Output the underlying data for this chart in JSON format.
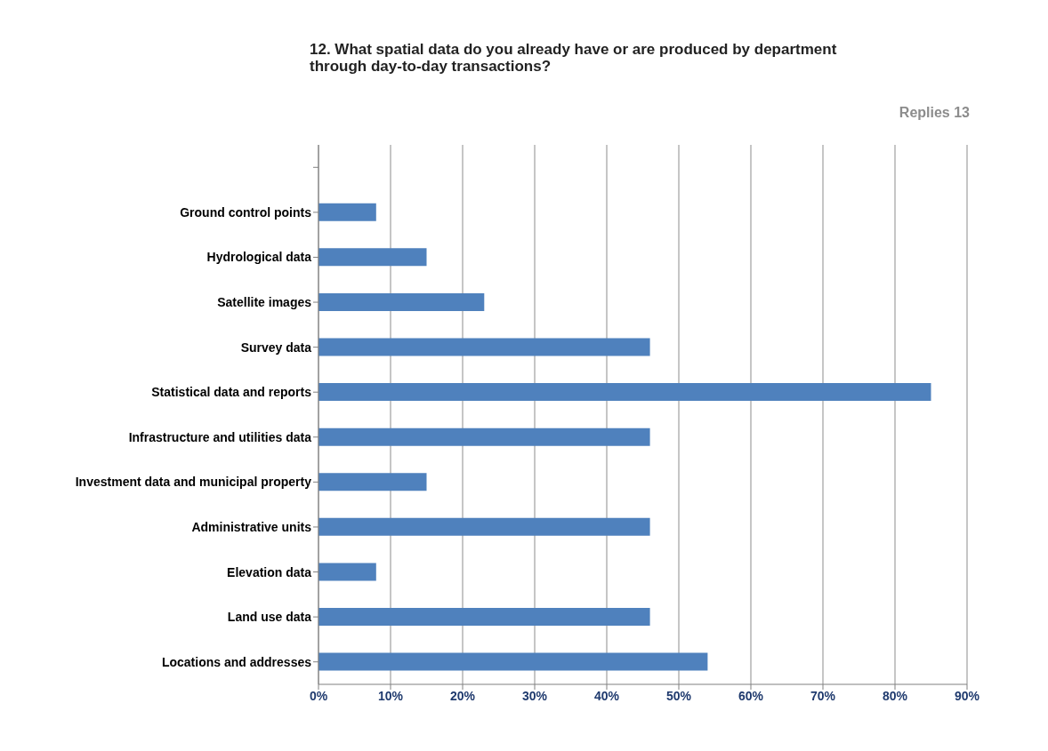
{
  "chart_data": {
    "type": "bar",
    "orientation": "horizontal",
    "title": "12. What spatial data do you already have or are produced by department through day-to-day transactions?",
    "annotations": [
      "Replies 13"
    ],
    "categories": [
      null,
      "Ground control points",
      "Hydrological data",
      "Satellite images",
      "Survey data",
      "Statistical data and reports",
      "Infrastructure and utilities  data",
      "Investment data and municipal property",
      "Administrative  units",
      "Elevation data",
      "Land use data",
      "Locations and addresses"
    ],
    "values": [
      null,
      8,
      15,
      23,
      46,
      85,
      46,
      15,
      46,
      8,
      46,
      54
    ],
    "color": "#4f81bd",
    "xlim": [
      0,
      90
    ],
    "xticks": [
      {
        "value": 0,
        "label": "0%"
      },
      {
        "value": 10,
        "label": "10%"
      },
      {
        "value": 20,
        "label": "20%"
      },
      {
        "value": 30,
        "label": "30%"
      },
      {
        "value": 40,
        "label": "40%"
      },
      {
        "value": 50,
        "label": "50%"
      },
      {
        "value": 60,
        "label": "60%"
      },
      {
        "value": 70,
        "label": "70%"
      },
      {
        "value": 80,
        "label": "80%"
      },
      {
        "value": 90,
        "label": "90%"
      }
    ],
    "grid": "x"
  }
}
